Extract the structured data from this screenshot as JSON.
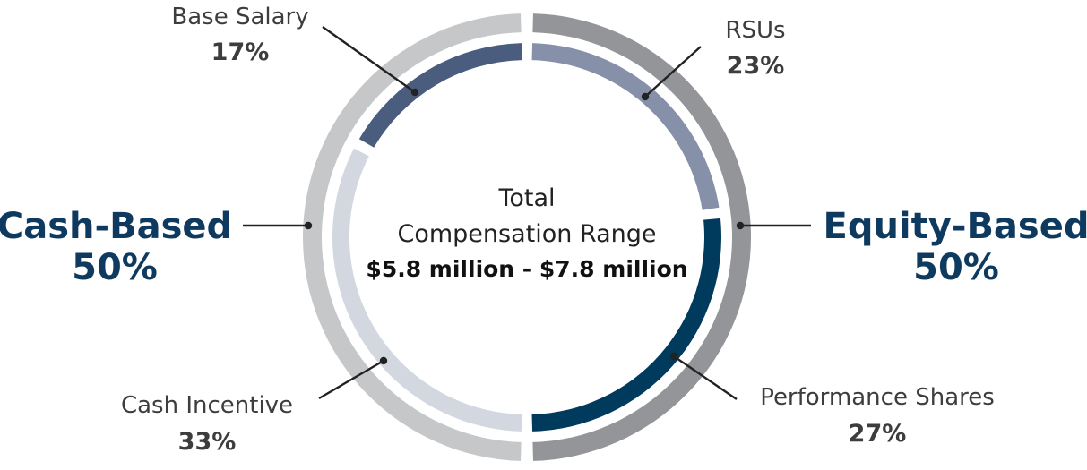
{
  "chart_data": {
    "type": "pie",
    "center": {
      "line1": "Total",
      "line2": "Compensation Range",
      "line3": "$5.8 million - $7.8 million"
    },
    "groups": [
      {
        "label": "Cash-Based",
        "value": 50,
        "display": "50%"
      },
      {
        "label": "Equity-Based",
        "value": 50,
        "display": "50%"
      }
    ],
    "segments": [
      {
        "label": "Base Salary",
        "value": 17,
        "display": "17%",
        "group": "Cash-Based"
      },
      {
        "label": "Cash Incentive",
        "value": 33,
        "display": "33%",
        "group": "Cash-Based"
      },
      {
        "label": "RSUs",
        "value": 23,
        "display": "23%",
        "group": "Equity-Based"
      },
      {
        "label": "Performance Shares",
        "value": 27,
        "display": "27%",
        "group": "Equity-Based"
      }
    ],
    "colors": {
      "outer_cash": "#c6c7c9",
      "outer_equity": "#939598",
      "base_salary": "#4a5d7e",
      "cash_incentive": "#d3d8e0",
      "rsus": "#8690a8",
      "performance_shares": "#003a5d",
      "group_text": "#0f3a5f",
      "text": "#3d3d3d",
      "leader": "#222222"
    }
  }
}
